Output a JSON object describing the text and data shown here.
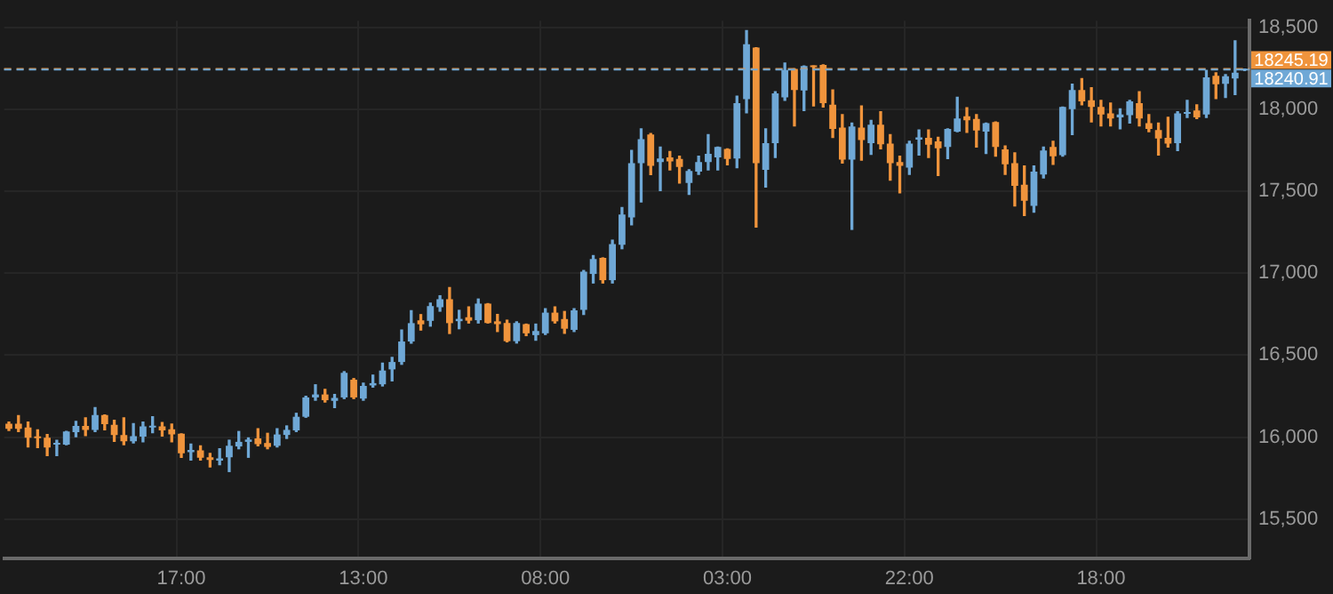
{
  "chart_data": {
    "type": "candlestick",
    "categories": [
      null,
      null,
      null,
      null,
      null,
      null,
      null,
      null,
      null,
      null,
      null,
      null,
      null,
      null,
      null,
      null,
      null,
      null,
      "17:00",
      null,
      null,
      null,
      null,
      null,
      null,
      null,
      null,
      null,
      null,
      null,
      null,
      null,
      null,
      null,
      null,
      null,
      null,
      "13:00",
      null,
      null,
      null,
      null,
      null,
      null,
      null,
      null,
      null,
      null,
      null,
      null,
      null,
      null,
      null,
      null,
      null,
      null,
      "08:00",
      null,
      null,
      null,
      null,
      null,
      null,
      null,
      null,
      null,
      null,
      null,
      null,
      null,
      null,
      null,
      null,
      null,
      null,
      "03:00",
      null,
      null,
      null,
      null,
      null,
      null,
      null,
      null,
      null,
      null,
      null,
      null,
      null,
      null,
      null,
      null,
      null,
      null,
      "22:00",
      null,
      null,
      null,
      null,
      null,
      null,
      null,
      null,
      null,
      null,
      null,
      null,
      null,
      null,
      null,
      null,
      null,
      null,
      null,
      "18:00",
      null,
      null,
      null,
      null,
      null,
      null,
      null,
      null,
      null,
      null,
      null,
      null,
      null,
      null,
      null
    ],
    "ohlc": [
      [
        16082,
        16092,
        16041,
        16051
      ],
      [
        16082,
        16131,
        16034,
        16051
      ],
      [
        16058,
        16092,
        15940,
        15996
      ],
      [
        16003,
        16044,
        15936,
        15994
      ],
      [
        15996,
        16016,
        15887,
        15936
      ],
      [
        15954,
        15981,
        15887,
        15964
      ],
      [
        15954,
        16034,
        15954,
        16034
      ],
      [
        16030,
        16096,
        16003,
        16068
      ],
      [
        16068,
        16117,
        16009,
        16044
      ],
      [
        16044,
        16180,
        16034,
        16135
      ],
      [
        16135,
        16135,
        16044,
        16079
      ],
      [
        16075,
        16103,
        15974,
        16013
      ],
      [
        16013,
        16117,
        15954,
        15974
      ],
      [
        15974,
        16082,
        15964,
        16006
      ],
      [
        16003,
        16092,
        15971,
        16065
      ],
      [
        16058,
        16124,
        16027,
        16068
      ],
      [
        16065,
        16089,
        16006,
        16041
      ],
      [
        16048,
        16079,
        15971,
        16016
      ],
      [
        16020,
        16020,
        15877,
        15901
      ],
      [
        15908,
        15957,
        15860,
        15922
      ],
      [
        15919,
        15947,
        15860,
        15874
      ],
      [
        15877,
        15901,
        15818,
        15860
      ],
      [
        15856,
        15929,
        15832,
        15870
      ],
      [
        15877,
        15981,
        15790,
        15947
      ],
      [
        15943,
        16034,
        15929,
        15971
      ],
      [
        15971,
        15995,
        15877,
        15985
      ],
      [
        15992,
        16051,
        15947,
        15957
      ],
      [
        15964,
        16023,
        15929,
        15940
      ],
      [
        15947,
        16051,
        15940,
        16016
      ],
      [
        16013,
        16068,
        15992,
        16044
      ],
      [
        16041,
        16145,
        16034,
        16124
      ],
      [
        16124,
        16249,
        16121,
        16242
      ],
      [
        16242,
        16319,
        16225,
        16260
      ],
      [
        16260,
        16291,
        16214,
        16225
      ],
      [
        16221,
        16260,
        16180,
        16239
      ],
      [
        16242,
        16399,
        16235,
        16392
      ],
      [
        16350,
        16357,
        16235,
        16242
      ],
      [
        16235,
        16329,
        16225,
        16312
      ],
      [
        16315,
        16378,
        16305,
        16329
      ],
      [
        16322,
        16451,
        16312,
        16406
      ],
      [
        16413,
        16486,
        16343,
        16458
      ],
      [
        16458,
        16653,
        16444,
        16583
      ],
      [
        16583,
        16771,
        16573,
        16695
      ],
      [
        16712,
        16747,
        16653,
        16688
      ],
      [
        16709,
        16817,
        16677,
        16799
      ],
      [
        16792,
        16862,
        16768,
        16841
      ],
      [
        16841,
        16912,
        16632,
        16695
      ],
      [
        16707,
        16773,
        16661,
        16721
      ],
      [
        16731,
        16794,
        16696,
        16710
      ],
      [
        16713,
        16842,
        16696,
        16814
      ],
      [
        16814,
        16814,
        16696,
        16696
      ],
      [
        16706,
        16748,
        16644,
        16689
      ],
      [
        16696,
        16713,
        16581,
        16585
      ],
      [
        16585,
        16703,
        16574,
        16696
      ],
      [
        16689,
        16689,
        16619,
        16633
      ],
      [
        16622,
        16689,
        16591,
        16647
      ],
      [
        16633,
        16783,
        16626,
        16759
      ],
      [
        16759,
        16794,
        16696,
        16706
      ],
      [
        16720,
        16766,
        16633,
        16661
      ],
      [
        16654,
        16783,
        16644,
        16773
      ],
      [
        16776,
        17016,
        16748,
        17009
      ],
      [
        16995,
        17107,
        16940,
        17086
      ],
      [
        17093,
        17093,
        16940,
        16957
      ],
      [
        16957,
        17201,
        16940,
        17177
      ],
      [
        17173,
        17400,
        17149,
        17358
      ],
      [
        17340,
        17748,
        17295,
        17671
      ],
      [
        17671,
        17880,
        17434,
        17817
      ],
      [
        17845,
        17852,
        17601,
        17654
      ],
      [
        17678,
        17769,
        17504,
        17699
      ],
      [
        17706,
        17741,
        17630,
        17682
      ],
      [
        17696,
        17713,
        17550,
        17647
      ],
      [
        17550,
        17630,
        17480,
        17623
      ],
      [
        17619,
        17713,
        17602,
        17678
      ],
      [
        17678,
        17845,
        17630,
        17727
      ],
      [
        17706,
        17769,
        17630,
        17769
      ],
      [
        17758,
        17758,
        17661,
        17696
      ],
      [
        17699,
        18079,
        17643,
        18037
      ],
      [
        18061,
        18479,
        17978,
        18396
      ],
      [
        18375,
        18375,
        17281,
        17671
      ],
      [
        17630,
        17880,
        17525,
        17793
      ],
      [
        17793,
        18107,
        17706,
        18096
      ],
      [
        18072,
        18281,
        18054,
        18239
      ],
      [
        18246,
        18246,
        17898,
        18117
      ],
      [
        18114,
        18263,
        17992,
        18263
      ],
      [
        18263,
        18263,
        18020,
        18256
      ],
      [
        18270,
        18270,
        18013,
        18037
      ],
      [
        18027,
        18117,
        17828,
        17880
      ],
      [
        17887,
        17967,
        17671,
        17692
      ],
      [
        17692,
        17915,
        17267,
        17894
      ],
      [
        17887,
        18020,
        17689,
        17811
      ],
      [
        17793,
        17932,
        17724,
        17905
      ],
      [
        17905,
        17985,
        17758,
        17786
      ],
      [
        17790,
        17845,
        17567,
        17671
      ],
      [
        17678,
        17713,
        17490,
        17654
      ],
      [
        17643,
        17804,
        17602,
        17790
      ],
      [
        17814,
        17873,
        17720,
        17828
      ],
      [
        17825,
        17873,
        17706,
        17783
      ],
      [
        17804,
        17828,
        17595,
        17762
      ],
      [
        17769,
        17880,
        17699,
        17880
      ],
      [
        17863,
        18072,
        17863,
        17943
      ],
      [
        17957,
        18009,
        17859,
        17932
      ],
      [
        17940,
        17967,
        17769,
        17870
      ],
      [
        17863,
        17915,
        17730,
        17915
      ],
      [
        17922,
        17922,
        17713,
        17769
      ],
      [
        17755,
        17776,
        17602,
        17664
      ],
      [
        17671,
        17734,
        17410,
        17532
      ],
      [
        17539,
        17654,
        17351,
        17441
      ],
      [
        17410,
        17654,
        17372,
        17619
      ],
      [
        17602,
        17769,
        17581,
        17748
      ],
      [
        17769,
        17804,
        17664,
        17713
      ],
      [
        17720,
        18013,
        17713,
        18013
      ],
      [
        18000,
        18152,
        17845,
        18117
      ],
      [
        18117,
        18187,
        18027,
        18047
      ],
      [
        18054,
        18131,
        17922,
        18013
      ],
      [
        18013,
        18054,
        17898,
        17967
      ],
      [
        17974,
        18037,
        17898,
        17943
      ],
      [
        17950,
        18002,
        17880,
        17967
      ],
      [
        17964,
        18054,
        17915,
        18047
      ],
      [
        18037,
        18107,
        17898,
        17943
      ],
      [
        17915,
        17967,
        17863,
        17880
      ],
      [
        17873,
        17915,
        17720,
        17821
      ],
      [
        17825,
        17950,
        17769,
        17790
      ],
      [
        17793,
        17985,
        17748,
        17974
      ],
      [
        17971,
        18054,
        17950,
        17978
      ],
      [
        17992,
        18027,
        17943,
        17950
      ],
      [
        17967,
        18236,
        17950,
        18194
      ],
      [
        18204,
        18222,
        18065,
        18152
      ],
      [
        18155,
        18211,
        18072,
        18201
      ],
      [
        18187,
        18417,
        18089,
        18222
      ],
      [
        18236,
        18245,
        18236,
        18241
      ]
    ],
    "colors": [
      "#f0943c",
      "#f0943c",
      "#f0943c",
      "#f0943c",
      "#f0943c",
      "#6fa8d6",
      "#6fa8d6",
      "#6fa8d6",
      "#f0943c",
      "#6fa8d6",
      "#f0943c",
      "#f0943c",
      "#f0943c",
      "#6fa8d6",
      "#6fa8d6",
      "#6fa8d6",
      "#f0943c",
      "#f0943c",
      "#f0943c",
      "#6fa8d6",
      "#f0943c",
      "#f0943c",
      "#6fa8d6",
      "#6fa8d6",
      "#6fa8d6",
      "#6fa8d6",
      "#f0943c",
      "#f0943c",
      "#6fa8d6",
      "#6fa8d6",
      "#6fa8d6",
      "#6fa8d6",
      "#6fa8d6",
      "#f0943c",
      "#6fa8d6",
      "#6fa8d6",
      "#f0943c",
      "#6fa8d6",
      "#6fa8d6",
      "#6fa8d6",
      "#6fa8d6",
      "#6fa8d6",
      "#6fa8d6",
      "#f0943c",
      "#6fa8d6",
      "#6fa8d6",
      "#f0943c",
      "#6fa8d6",
      "#f0943c",
      "#6fa8d6",
      "#f0943c",
      "#f0943c",
      "#f0943c",
      "#6fa8d6",
      "#f0943c",
      "#6fa8d6",
      "#6fa8d6",
      "#f0943c",
      "#f0943c",
      "#6fa8d6",
      "#6fa8d6",
      "#6fa8d6",
      "#f0943c",
      "#6fa8d6",
      "#6fa8d6",
      "#6fa8d6",
      "#6fa8d6",
      "#f0943c",
      "#6fa8d6",
      "#f0943c",
      "#f0943c",
      "#6fa8d6",
      "#6fa8d6",
      "#6fa8d6",
      "#6fa8d6",
      "#f0943c",
      "#6fa8d6",
      "#6fa8d6",
      "#f0943c",
      "#6fa8d6",
      "#6fa8d6",
      "#6fa8d6",
      "#f0943c",
      "#6fa8d6",
      "#f0943c",
      "#f0943c",
      "#f0943c",
      "#f0943c",
      "#6fa8d6",
      "#f0943c",
      "#6fa8d6",
      "#f0943c",
      "#f0943c",
      "#f0943c",
      "#6fa8d6",
      "#6fa8d6",
      "#f0943c",
      "#f0943c",
      "#6fa8d6",
      "#6fa8d6",
      "#f0943c",
      "#f0943c",
      "#6fa8d6",
      "#f0943c",
      "#f0943c",
      "#f0943c",
      "#f0943c",
      "#6fa8d6",
      "#6fa8d6",
      "#f0943c",
      "#6fa8d6",
      "#6fa8d6",
      "#f0943c",
      "#f0943c",
      "#f0943c",
      "#f0943c",
      "#6fa8d6",
      "#6fa8d6",
      "#f0943c",
      "#f0943c",
      "#f0943c",
      "#f0943c",
      "#6fa8d6",
      "#6fa8d6",
      "#f0943c",
      "#6fa8d6",
      "#f0943c",
      "#6fa8d6",
      "#6fa8d6",
      "#6fa8d6"
    ],
    "ylim": [
      15260,
      18540
    ],
    "yticks": [
      {
        "value": 15500,
        "label": "15,500"
      },
      {
        "value": 16000,
        "label": "16,000"
      },
      {
        "value": 16500,
        "label": "16,500"
      },
      {
        "value": 17000,
        "label": "17,000"
      },
      {
        "value": 17500,
        "label": "17,500"
      },
      {
        "value": 18000,
        "label": "18,000"
      },
      {
        "value": 18500,
        "label": "18,500"
      }
    ],
    "grid": true,
    "ref_lines": [
      {
        "axis": "y",
        "value": 18245.19,
        "label": "18245.19",
        "color": "#f0943c",
        "line_style": "dashed"
      },
      {
        "axis": "y",
        "value": 18240.91,
        "label": "18240.91",
        "color": "#6fa8d6",
        "line_style": "dashed"
      }
    ]
  }
}
